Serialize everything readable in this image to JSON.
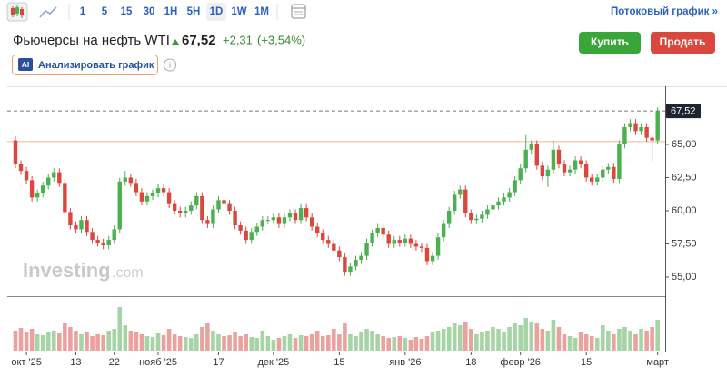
{
  "toolbar": {
    "timeframes": [
      "1",
      "5",
      "15",
      "30",
      "1H",
      "5H",
      "1D",
      "1W",
      "1M"
    ],
    "selected": 6,
    "streaming_link": "Потоковый график »"
  },
  "header": {
    "title": "Фьючерсы на нефть WTI",
    "price": "67,52",
    "change": "+2,31",
    "change_percent": "(+3,54%)",
    "buy": "Купить",
    "sell": "Продать",
    "ai_badge": "AI",
    "ai_button": "Анализировать график"
  },
  "watermark": {
    "brand": "Investing",
    "suffix": ".com"
  },
  "chart_data": {
    "type": "candlestick",
    "up_color": "#4caf50",
    "down_color": "#d9473f",
    "up_volume_color": "#a6d4a6",
    "down_volume_color": "#eaa29e",
    "ylim": [
      53.63,
      69.38
    ],
    "yticks": [
      {
        "value": 55,
        "label": "55,00"
      },
      {
        "value": 57.5,
        "label": "57,50"
      },
      {
        "value": 60,
        "label": "60,00"
      },
      {
        "value": 62.5,
        "label": "62,50"
      },
      {
        "value": 65,
        "label": "65,00"
      }
    ],
    "last_price": {
      "value": 67.52,
      "label": "67,52"
    },
    "previous_close": 65.21,
    "categories": [
      null,
      null,
      "окт '25",
      null,
      null,
      null,
      null,
      null,
      null,
      null,
      null,
      "13",
      null,
      null,
      null,
      null,
      null,
      null,
      "22",
      null,
      null,
      null,
      null,
      null,
      null,
      null,
      "нояб '25",
      null,
      null,
      null,
      null,
      null,
      null,
      null,
      null,
      null,
      null,
      "17",
      null,
      null,
      null,
      null,
      null,
      null,
      null,
      null,
      null,
      "дек '25",
      null,
      null,
      null,
      null,
      null,
      null,
      null,
      null,
      null,
      null,
      null,
      "15",
      null,
      null,
      null,
      null,
      null,
      null,
      null,
      null,
      null,
      null,
      null,
      "янв '26",
      null,
      null,
      null,
      null,
      null,
      null,
      null,
      null,
      null,
      null,
      null,
      "18",
      null,
      null,
      null,
      null,
      null,
      null,
      null,
      null,
      "февр '26",
      null,
      null,
      null,
      null,
      null,
      null,
      null,
      null,
      null,
      null,
      null,
      "15",
      null,
      null,
      null,
      null,
      null,
      null,
      null,
      null,
      null,
      null,
      null,
      null,
      "март"
    ],
    "candles": [
      [
        65.3,
        65.6,
        63.2,
        63.5
      ],
      [
        63.5,
        63.8,
        62.7,
        63.0
      ],
      [
        63.0,
        63.3,
        62.0,
        62.3
      ],
      [
        62.3,
        62.6,
        60.7,
        61.0
      ],
      [
        61.0,
        61.6,
        60.7,
        61.3
      ],
      [
        61.3,
        62.2,
        61.0,
        61.9
      ],
      [
        61.9,
        62.8,
        61.6,
        62.5
      ],
      [
        62.5,
        63.2,
        62.2,
        62.9
      ],
      [
        62.9,
        63.2,
        61.8,
        62.1
      ],
      [
        62.1,
        62.4,
        59.6,
        59.9
      ],
      [
        59.9,
        60.2,
        58.6,
        58.9
      ],
      [
        58.9,
        59.2,
        58.3,
        58.6
      ],
      [
        58.6,
        59.6,
        58.3,
        59.3
      ],
      [
        59.3,
        59.6,
        58.1,
        58.4
      ],
      [
        58.4,
        58.7,
        57.5,
        57.8
      ],
      [
        57.8,
        58.1,
        57.3,
        57.6
      ],
      [
        57.6,
        57.9,
        57.1,
        57.4
      ],
      [
        57.4,
        58.1,
        57.1,
        57.8
      ],
      [
        57.8,
        58.9,
        57.5,
        58.6
      ],
      [
        58.6,
        62.5,
        58.3,
        62.2
      ],
      [
        62.2,
        63.0,
        61.9,
        62.5
      ],
      [
        62.5,
        62.8,
        61.8,
        62.1
      ],
      [
        62.1,
        62.4,
        61.1,
        61.4
      ],
      [
        61.4,
        61.7,
        60.4,
        60.7
      ],
      [
        60.7,
        61.4,
        60.4,
        61.1
      ],
      [
        61.1,
        61.6,
        60.8,
        61.3
      ],
      [
        61.3,
        62.0,
        61.0,
        61.7
      ],
      [
        61.7,
        62.0,
        61.1,
        61.4
      ],
      [
        61.4,
        61.7,
        60.2,
        60.5
      ],
      [
        60.5,
        60.8,
        59.7,
        60.0
      ],
      [
        60.0,
        60.3,
        59.5,
        59.8
      ],
      [
        59.8,
        60.3,
        59.5,
        60.0
      ],
      [
        60.0,
        60.7,
        59.7,
        60.4
      ],
      [
        60.4,
        61.4,
        60.1,
        61.1
      ],
      [
        61.1,
        61.4,
        59.0,
        59.3
      ],
      [
        59.3,
        59.6,
        58.7,
        59.0
      ],
      [
        59.0,
        60.4,
        58.7,
        60.1
      ],
      [
        60.1,
        61.1,
        59.8,
        60.8
      ],
      [
        60.8,
        61.1,
        60.2,
        60.5
      ],
      [
        60.5,
        60.8,
        59.7,
        60.0
      ],
      [
        60.0,
        60.3,
        58.6,
        58.9
      ],
      [
        58.9,
        59.2,
        58.2,
        58.5
      ],
      [
        58.5,
        58.8,
        57.5,
        57.8
      ],
      [
        57.8,
        58.7,
        57.5,
        58.4
      ],
      [
        58.4,
        59.1,
        58.1,
        58.8
      ],
      [
        58.8,
        59.6,
        58.5,
        59.3
      ],
      [
        59.3,
        59.6,
        59.0,
        59.3
      ],
      [
        59.3,
        59.8,
        59.0,
        59.5
      ],
      [
        59.5,
        59.8,
        58.7,
        59.0
      ],
      [
        59.0,
        59.8,
        58.7,
        59.5
      ],
      [
        59.5,
        60.1,
        59.2,
        59.8
      ],
      [
        59.8,
        60.1,
        59.0,
        59.3
      ],
      [
        59.3,
        60.5,
        59.0,
        60.2
      ],
      [
        60.2,
        60.5,
        59.2,
        59.5
      ],
      [
        59.5,
        59.8,
        58.5,
        58.8
      ],
      [
        58.8,
        59.1,
        58.0,
        58.3
      ],
      [
        58.3,
        58.6,
        57.5,
        57.8
      ],
      [
        57.8,
        58.1,
        57.2,
        57.5
      ],
      [
        57.5,
        57.8,
        56.7,
        57.0
      ],
      [
        57.0,
        57.3,
        56.2,
        56.5
      ],
      [
        56.5,
        56.8,
        55.1,
        55.4
      ],
      [
        55.4,
        56.1,
        55.1,
        55.8
      ],
      [
        55.8,
        56.6,
        55.5,
        56.3
      ],
      [
        56.3,
        56.9,
        56.0,
        56.6
      ],
      [
        56.6,
        57.9,
        56.3,
        57.6
      ],
      [
        57.6,
        58.6,
        57.3,
        58.3
      ],
      [
        58.3,
        59.0,
        58.0,
        58.7
      ],
      [
        58.7,
        59.0,
        57.9,
        58.2
      ],
      [
        58.2,
        58.5,
        57.2,
        57.5
      ],
      [
        57.5,
        58.1,
        57.2,
        57.8
      ],
      [
        57.8,
        58.1,
        57.3,
        57.6
      ],
      [
        57.6,
        58.2,
        57.3,
        57.9
      ],
      [
        57.9,
        58.2,
        57.2,
        57.5
      ],
      [
        57.5,
        57.8,
        57.0,
        57.3
      ],
      [
        57.3,
        57.6,
        56.9,
        57.2
      ],
      [
        57.2,
        57.5,
        55.9,
        56.2
      ],
      [
        56.2,
        56.9,
        55.9,
        56.6
      ],
      [
        56.6,
        58.3,
        56.3,
        58.0
      ],
      [
        58.0,
        59.3,
        57.7,
        59.0
      ],
      [
        59.0,
        60.3,
        58.7,
        60.0
      ],
      [
        60.0,
        61.5,
        59.7,
        61.2
      ],
      [
        61.2,
        61.9,
        60.9,
        61.6
      ],
      [
        61.6,
        61.9,
        59.5,
        59.8
      ],
      [
        59.8,
        60.1,
        59.0,
        59.3
      ],
      [
        59.3,
        59.7,
        59.0,
        59.4
      ],
      [
        59.4,
        60.0,
        59.1,
        59.7
      ],
      [
        59.7,
        60.4,
        59.4,
        60.1
      ],
      [
        60.1,
        60.7,
        59.8,
        60.4
      ],
      [
        60.4,
        61.0,
        60.1,
        60.7
      ],
      [
        60.7,
        61.3,
        60.4,
        61.0
      ],
      [
        61.0,
        61.7,
        60.7,
        61.4
      ],
      [
        61.4,
        62.6,
        61.1,
        62.3
      ],
      [
        62.3,
        63.5,
        62.0,
        63.2
      ],
      [
        63.2,
        65.7,
        62.9,
        64.6
      ],
      [
        64.6,
        65.3,
        64.3,
        65.0
      ],
      [
        65.0,
        65.3,
        63.1,
        63.4
      ],
      [
        63.4,
        63.7,
        62.3,
        62.6
      ],
      [
        62.6,
        63.4,
        61.8,
        63.1
      ],
      [
        63.1,
        65.3,
        62.8,
        64.6
      ],
      [
        64.6,
        64.9,
        63.2,
        63.5
      ],
      [
        63.5,
        63.8,
        62.6,
        62.9
      ],
      [
        62.9,
        63.4,
        62.6,
        63.1
      ],
      [
        63.1,
        64.1,
        62.8,
        63.8
      ],
      [
        63.8,
        64.1,
        63.2,
        63.5
      ],
      [
        63.5,
        63.8,
        62.2,
        62.5
      ],
      [
        62.5,
        62.8,
        61.9,
        62.2
      ],
      [
        62.2,
        62.8,
        61.9,
        62.5
      ],
      [
        62.5,
        63.4,
        62.2,
        63.1
      ],
      [
        63.1,
        63.6,
        62.8,
        63.3
      ],
      [
        63.3,
        63.6,
        62.1,
        62.4
      ],
      [
        62.4,
        65.3,
        62.1,
        65.0
      ],
      [
        65.0,
        66.6,
        64.7,
        66.3
      ],
      [
        66.3,
        66.9,
        66.0,
        66.6
      ],
      [
        66.6,
        66.9,
        65.7,
        66.0
      ],
      [
        66.0,
        66.6,
        65.7,
        66.3
      ],
      [
        66.3,
        66.6,
        65.2,
        65.5
      ],
      [
        65.5,
        65.8,
        63.7,
        65.3
      ],
      [
        65.3,
        67.8,
        65.0,
        67.52
      ]
    ],
    "volume": [
      22,
      25,
      20,
      24,
      18,
      17,
      20,
      22,
      19,
      30,
      26,
      22,
      18,
      20,
      16,
      18,
      17,
      22,
      24,
      48,
      28,
      22,
      20,
      18,
      16,
      15,
      19,
      17,
      24,
      18,
      16,
      15,
      14,
      18,
      26,
      30,
      22,
      18,
      16,
      17,
      20,
      16,
      18,
      15,
      14,
      22,
      16,
      12,
      14,
      16,
      18,
      14,
      17,
      16,
      18,
      22,
      16,
      17,
      24,
      18,
      30,
      18,
      16,
      20,
      24,
      22,
      18,
      16,
      14,
      15,
      16,
      14,
      12,
      15,
      13,
      16,
      20,
      22,
      24,
      26,
      30,
      28,
      32,
      24,
      18,
      20,
      22,
      26,
      24,
      20,
      26,
      30,
      28,
      36,
      32,
      30,
      24,
      22,
      34,
      26,
      18,
      16,
      14,
      20,
      18,
      16,
      14,
      28,
      22,
      18,
      24,
      26,
      22,
      18,
      24,
      22,
      26,
      34
    ]
  }
}
